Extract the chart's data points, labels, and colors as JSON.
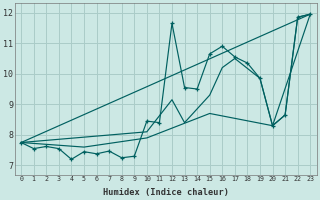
{
  "xlabel": "Humidex (Indice chaleur)",
  "xlim": [
    -0.5,
    23.5
  ],
  "ylim": [
    6.7,
    12.3
  ],
  "xticks": [
    0,
    1,
    2,
    3,
    4,
    5,
    6,
    7,
    8,
    9,
    10,
    11,
    12,
    13,
    14,
    15,
    16,
    17,
    18,
    19,
    20,
    21,
    22,
    23
  ],
  "yticks": [
    7,
    8,
    9,
    10,
    11,
    12
  ],
  "bg_color": "#cce8e4",
  "grid_color": "#aaccc8",
  "line_color": "#006060",
  "line1_x": [
    0,
    1,
    2,
    3,
    4,
    5,
    6,
    7,
    8,
    9,
    10,
    11,
    12,
    13,
    14,
    15,
    16,
    17,
    18,
    19,
    20,
    21,
    22,
    23
  ],
  "line1_y": [
    7.75,
    7.55,
    7.62,
    7.55,
    7.2,
    7.45,
    7.38,
    7.47,
    7.25,
    7.3,
    8.45,
    8.4,
    11.65,
    9.55,
    9.5,
    10.65,
    10.9,
    10.55,
    10.35,
    9.85,
    8.3,
    8.65,
    11.85,
    11.95
  ],
  "line2_x": [
    0,
    10,
    12,
    13,
    15,
    16,
    17,
    19,
    20,
    21,
    22,
    23
  ],
  "line2_y": [
    7.75,
    8.1,
    9.15,
    8.4,
    9.3,
    10.2,
    10.5,
    9.85,
    8.3,
    8.65,
    11.85,
    11.95
  ],
  "line3_x": [
    0,
    23
  ],
  "line3_y": [
    7.75,
    11.95
  ],
  "line4_x": [
    0,
    5,
    10,
    15,
    20,
    23
  ],
  "line4_y": [
    7.75,
    7.6,
    7.9,
    8.7,
    8.3,
    11.95
  ]
}
